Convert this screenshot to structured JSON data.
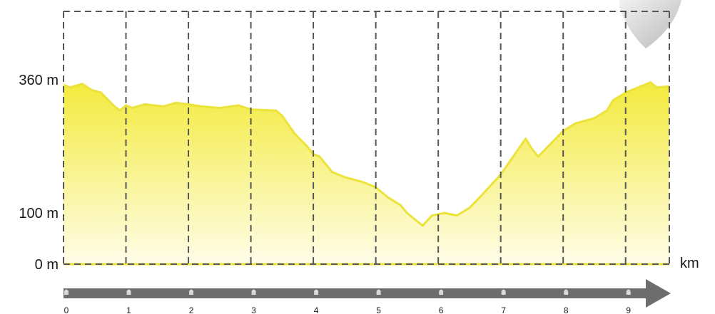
{
  "chart_data": {
    "type": "area",
    "title": "",
    "xlabel": "km",
    "ylabel": "",
    "x_unit": "km",
    "xlim": [
      0,
      9.7
    ],
    "ylim": [
      0,
      360
    ],
    "y_ticks": [
      {
        "value": 0,
        "label": "0 m"
      },
      {
        "value": 100,
        "label": "100 m"
      },
      {
        "value": 360,
        "label": "360 m"
      }
    ],
    "x_ticks": [
      "0",
      "1",
      "2",
      "3",
      "4",
      "5",
      "6",
      "7",
      "8",
      "9"
    ],
    "grid": "dashed vertical lines at each km",
    "x": [
      0,
      0.1,
      0.3,
      0.45,
      0.6,
      0.8,
      0.9,
      1.0,
      1.1,
      1.3,
      1.6,
      1.8,
      2.0,
      2.2,
      2.5,
      2.8,
      3.0,
      3.4,
      3.5,
      3.7,
      3.9,
      4.0,
      4.1,
      4.3,
      4.5,
      4.8,
      5.0,
      5.2,
      5.4,
      5.5,
      5.6,
      5.75,
      5.9,
      6.1,
      6.3,
      6.5,
      6.7,
      7.0,
      7.2,
      7.4,
      7.5,
      7.6,
      7.8,
      8.0,
      8.2,
      8.5,
      8.7,
      8.8,
      9.0,
      9.2,
      9.4,
      9.5,
      9.7
    ],
    "series": [
      {
        "values": [
          350,
          345,
          352,
          340,
          335,
          310,
          300,
          310,
          305,
          312,
          308,
          315,
          312,
          308,
          305,
          310,
          302,
          300,
          290,
          255,
          230,
          215,
          210,
          180,
          170,
          160,
          150,
          130,
          115,
          100,
          90,
          75,
          95,
          100,
          95,
          110,
          135,
          175,
          210,
          245,
          225,
          210,
          235,
          260,
          275,
          285,
          300,
          320,
          335,
          345,
          355,
          345,
          347
        ]
      }
    ],
    "colors": {
      "line": "#ece33a",
      "fill_top": "#f3ea3c",
      "fill_bottom": "#fffde8",
      "grid": "#555555",
      "axis_arrow": "#6d6d6d"
    }
  }
}
